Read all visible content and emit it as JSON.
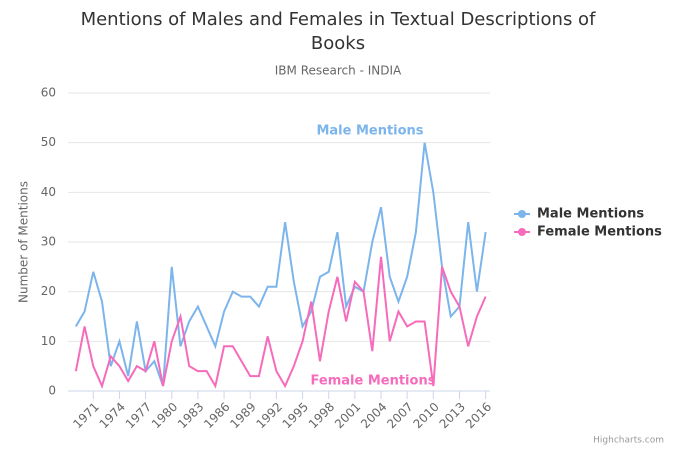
{
  "chart_data": {
    "type": "line",
    "title": "Mentions of Males and Females in Textual Descriptions of Books",
    "subtitle": "IBM Research - INDIA",
    "y_axis_label": "Number of Mentions",
    "x": [
      1969,
      1970,
      1971,
      1972,
      1973,
      1974,
      1975,
      1976,
      1977,
      1978,
      1979,
      1980,
      1981,
      1982,
      1983,
      1984,
      1985,
      1986,
      1987,
      1988,
      1989,
      1990,
      1991,
      1992,
      1993,
      1994,
      1995,
      1996,
      1997,
      1998,
      1999,
      2000,
      2001,
      2002,
      2003,
      2004,
      2005,
      2006,
      2007,
      2008,
      2009,
      2010,
      2011,
      2012,
      2013,
      2014,
      2015,
      2016
    ],
    "series": [
      {
        "name": "Male Mentions",
        "color": "#7cb5ec",
        "values": [
          13,
          16,
          24,
          18,
          5,
          10,
          3,
          14,
          4,
          6,
          1,
          25,
          9,
          14,
          17,
          13,
          9,
          16,
          20,
          19,
          19,
          17,
          21,
          21,
          34,
          22,
          13,
          16,
          23,
          24,
          32,
          17,
          21,
          20,
          30,
          37,
          23,
          18,
          23,
          32,
          50,
          40,
          25,
          15,
          17,
          34,
          20,
          32
        ]
      },
      {
        "name": "Female Mentions",
        "color": "#f66bbb",
        "values": [
          4,
          13,
          5,
          1,
          7,
          5,
          2,
          5,
          4,
          10,
          1,
          10,
          15,
          5,
          4,
          4,
          1,
          9,
          9,
          6,
          3,
          3,
          11,
          4,
          1,
          5,
          10,
          18,
          6,
          16,
          23,
          14,
          22,
          20,
          8,
          27,
          10,
          16,
          13,
          14,
          14,
          1,
          25,
          20,
          17,
          9,
          15,
          19
        ]
      }
    ],
    "annotations": [
      "Male Mentions",
      "Female Mentions"
    ],
    "xlim": [
      1968.1,
      2016.5
    ],
    "xticks": [
      1971,
      1974,
      1977,
      1980,
      1983,
      1986,
      1989,
      1992,
      1995,
      1998,
      2001,
      2004,
      2007,
      2010,
      2013,
      2016
    ],
    "ylim": [
      0,
      60
    ],
    "yticks": [
      0,
      10,
      20,
      30,
      40,
      50,
      60
    ],
    "grid": true,
    "legend": "right",
    "credits": "Highcharts.com"
  }
}
